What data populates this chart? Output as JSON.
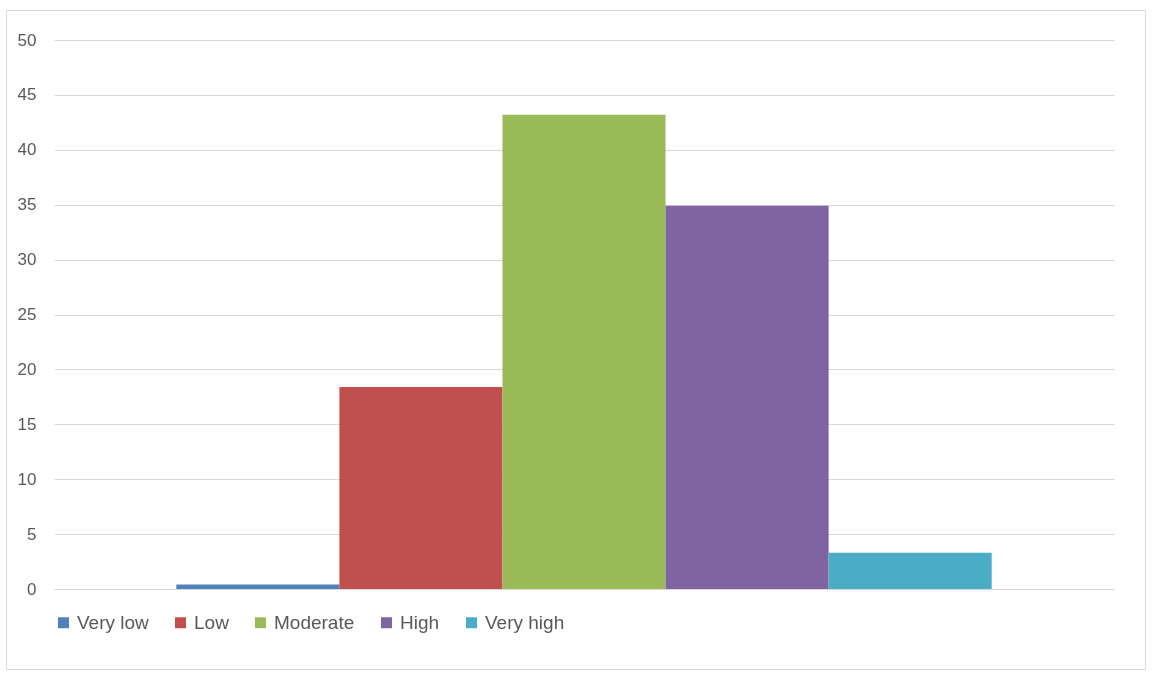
{
  "chart_data": {
    "type": "bar",
    "categories": [
      null
    ],
    "series": [
      {
        "name": "Very low",
        "color": "#4f81bd",
        "values": [
          0.4
        ]
      },
      {
        "name": "Low",
        "color": "#c0504d",
        "values": [
          18.4
        ]
      },
      {
        "name": "Moderate",
        "color": "#9bbb59",
        "values": [
          43.2
        ]
      },
      {
        "name": "High",
        "color": "#8064a2",
        "values": [
          34.9
        ]
      },
      {
        "name": "Very high",
        "color": "#4bacc6",
        "values": [
          3.3
        ]
      }
    ],
    "ylim": [
      0,
      50
    ],
    "yticks": [
      0,
      5,
      10,
      15,
      20,
      25,
      30,
      35,
      40,
      45,
      50
    ],
    "grid": "y",
    "legend": "bottom"
  }
}
